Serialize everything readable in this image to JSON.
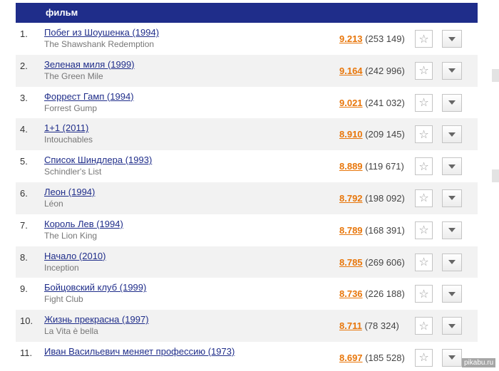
{
  "header": {
    "column_label": "фильм"
  },
  "films": [
    {
      "rank": "1.",
      "title": "Побег из Шоушенка (1994)",
      "original": "The Shawshank Redemption",
      "rating": "9.213",
      "votes": "(253 149)"
    },
    {
      "rank": "2.",
      "title": "Зеленая миля (1999)",
      "original": "The Green Mile",
      "rating": "9.164",
      "votes": "(242 996)"
    },
    {
      "rank": "3.",
      "title": "Форрест Гамп (1994)",
      "original": "Forrest Gump",
      "rating": "9.021",
      "votes": "(241 032)"
    },
    {
      "rank": "4.",
      "title": "1+1 (2011)",
      "original": "Intouchables",
      "rating": "8.910",
      "votes": "(209 145)"
    },
    {
      "rank": "5.",
      "title": "Список Шиндлера (1993)",
      "original": "Schindler's List",
      "rating": "8.889",
      "votes": "(119 671)"
    },
    {
      "rank": "6.",
      "title": "Леон (1994)",
      "original": "Léon",
      "rating": "8.792",
      "votes": "(198 092)"
    },
    {
      "rank": "7.",
      "title": "Король Лев (1994)",
      "original": "The Lion King",
      "rating": "8.789",
      "votes": "(168 391)"
    },
    {
      "rank": "8.",
      "title": "Начало (2010)",
      "original": "Inception",
      "rating": "8.785",
      "votes": "(269 606)"
    },
    {
      "rank": "9.",
      "title": "Бойцовский клуб (1999)",
      "original": "Fight Club",
      "rating": "8.736",
      "votes": "(226 188)"
    },
    {
      "rank": "10.",
      "title": "Жизнь прекрасна (1997)",
      "original": "La Vita è bella",
      "rating": "8.711",
      "votes": "(78 324)"
    },
    {
      "rank": "11.",
      "title": "Иван Васильевич меняет профессию (1973)",
      "original": "",
      "rating": "8.697",
      "votes": "(185 528)"
    }
  ],
  "icons": {
    "star": "star-icon",
    "menu": "chevron-down-icon"
  },
  "colors": {
    "header_bg": "#1f2d8a",
    "link": "#1f2d8a",
    "rating": "#e8760a",
    "alt_row": "#f2f2f2"
  },
  "watermark": "pikabu.ru"
}
